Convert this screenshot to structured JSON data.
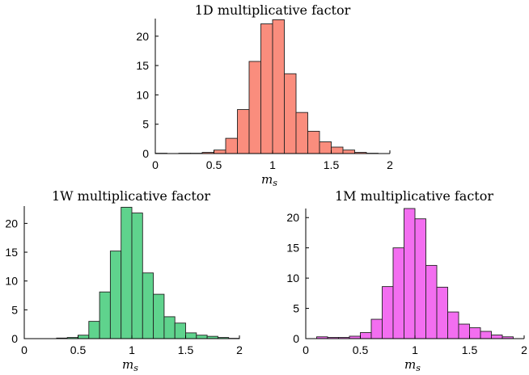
{
  "chart_data": [
    {
      "type": "bar",
      "title": "1D multiplicative factor",
      "xlabel": "m",
      "xlabel_sub": "s",
      "ylabel": "",
      "xlim": [
        0,
        2
      ],
      "ylim": [
        0,
        23
      ],
      "xticks": [
        "0",
        "0.5",
        "1",
        "1.5",
        "2"
      ],
      "yticks": [
        "0",
        "5",
        "10",
        "15",
        "20"
      ],
      "color": "#fa8d7d",
      "bin_width": 0.1,
      "bin_starts": [
        0.0,
        0.1,
        0.2,
        0.3,
        0.4,
        0.5,
        0.6,
        0.7,
        0.8,
        0.9,
        1.0,
        1.1,
        1.2,
        1.3,
        1.4,
        1.5,
        1.6,
        1.7,
        1.8,
        1.9
      ],
      "values": [
        0.05,
        0.0,
        0.05,
        0.05,
        0.2,
        0.6,
        2.6,
        7.5,
        15.7,
        22.1,
        22.8,
        13.6,
        7.0,
        3.8,
        2.0,
        1.1,
        0.6,
        0.2,
        0.05,
        0.0
      ]
    },
    {
      "type": "bar",
      "title": "1W multiplicative factor",
      "xlabel": "m",
      "xlabel_sub": "s",
      "ylabel": "",
      "xlim": [
        0,
        2
      ],
      "ylim": [
        0,
        23
      ],
      "xticks": [
        "0",
        "0.5",
        "1",
        "1.5",
        "2"
      ],
      "yticks": [
        "0",
        "5",
        "10",
        "15",
        "20"
      ],
      "color": "#5fd38d",
      "bin_width": 0.1,
      "bin_starts": [
        0.0,
        0.1,
        0.2,
        0.3,
        0.4,
        0.5,
        0.6,
        0.7,
        0.8,
        0.9,
        1.0,
        1.1,
        1.2,
        1.3,
        1.4,
        1.5,
        1.6,
        1.7,
        1.8,
        1.9
      ],
      "values": [
        0.0,
        0.0,
        0.0,
        0.1,
        0.2,
        0.6,
        3.0,
        8.1,
        15.2,
        22.8,
        21.8,
        11.4,
        7.7,
        3.8,
        2.7,
        1.0,
        0.6,
        0.4,
        0.2,
        0.05
      ]
    },
    {
      "type": "bar",
      "title": "1M multiplicative factor",
      "xlabel": "m",
      "xlabel_sub": "s",
      "ylabel": "",
      "xlim": [
        0,
        2
      ],
      "ylim": [
        0,
        21.5
      ],
      "xticks": [
        "0",
        "0.5",
        "1",
        "1.5",
        "2"
      ],
      "yticks": [
        "0",
        "5",
        "10",
        "15",
        "20"
      ],
      "color": "#f36ef0",
      "bin_width": 0.1,
      "bin_starts": [
        0.0,
        0.1,
        0.2,
        0.3,
        0.4,
        0.5,
        0.6,
        0.7,
        0.8,
        0.9,
        1.0,
        1.1,
        1.2,
        1.3,
        1.4,
        1.5,
        1.6,
        1.7,
        1.8,
        1.9
      ],
      "values": [
        0.0,
        0.3,
        0.2,
        0.2,
        0.4,
        1.0,
        3.2,
        8.6,
        15.0,
        21.5,
        19.8,
        12.1,
        8.5,
        4.4,
        2.4,
        1.8,
        1.2,
        0.6,
        0.3,
        0.0
      ]
    }
  ]
}
